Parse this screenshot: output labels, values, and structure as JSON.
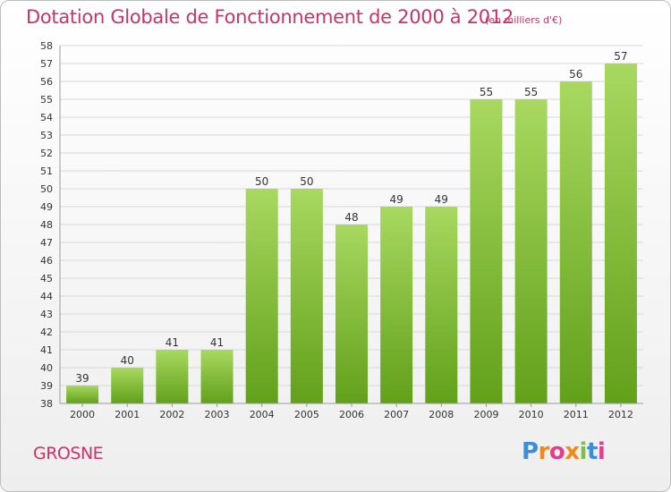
{
  "header": {
    "title": "Dotation Globale de Fonctionnement de 2000 à 2012",
    "unit": "(en milliers d'€)"
  },
  "footer": {
    "commune": "GROSNE",
    "logo": "Proxiti"
  },
  "colors": {
    "title": "#cc3366",
    "bar_light": "#a8d860",
    "bar_dark": "#62a01a",
    "logo_blue": "#3a8ede",
    "logo_orange": "#f08a1c",
    "logo_pink": "#e04088",
    "logo_green": "#7cc242"
  },
  "chart_data": {
    "type": "bar",
    "title": "Dotation Globale de Fonctionnement de 2000 à 2012",
    "subtitle": "(en milliers d'€)",
    "categories": [
      "2000",
      "2001",
      "2002",
      "2003",
      "2004",
      "2005",
      "2006",
      "2007",
      "2008",
      "2009",
      "2010",
      "2011",
      "2012"
    ],
    "values": [
      39,
      40,
      41,
      41,
      50,
      50,
      48,
      49,
      49,
      55,
      55,
      56,
      57
    ],
    "ylim": [
      38,
      58
    ],
    "yticks": [
      38,
      39,
      40,
      41,
      42,
      43,
      44,
      45,
      46,
      47,
      48,
      49,
      50,
      51,
      52,
      53,
      54,
      55,
      56,
      57,
      58
    ],
    "grid": true,
    "legend": "none",
    "xlabel": "",
    "ylabel": ""
  }
}
